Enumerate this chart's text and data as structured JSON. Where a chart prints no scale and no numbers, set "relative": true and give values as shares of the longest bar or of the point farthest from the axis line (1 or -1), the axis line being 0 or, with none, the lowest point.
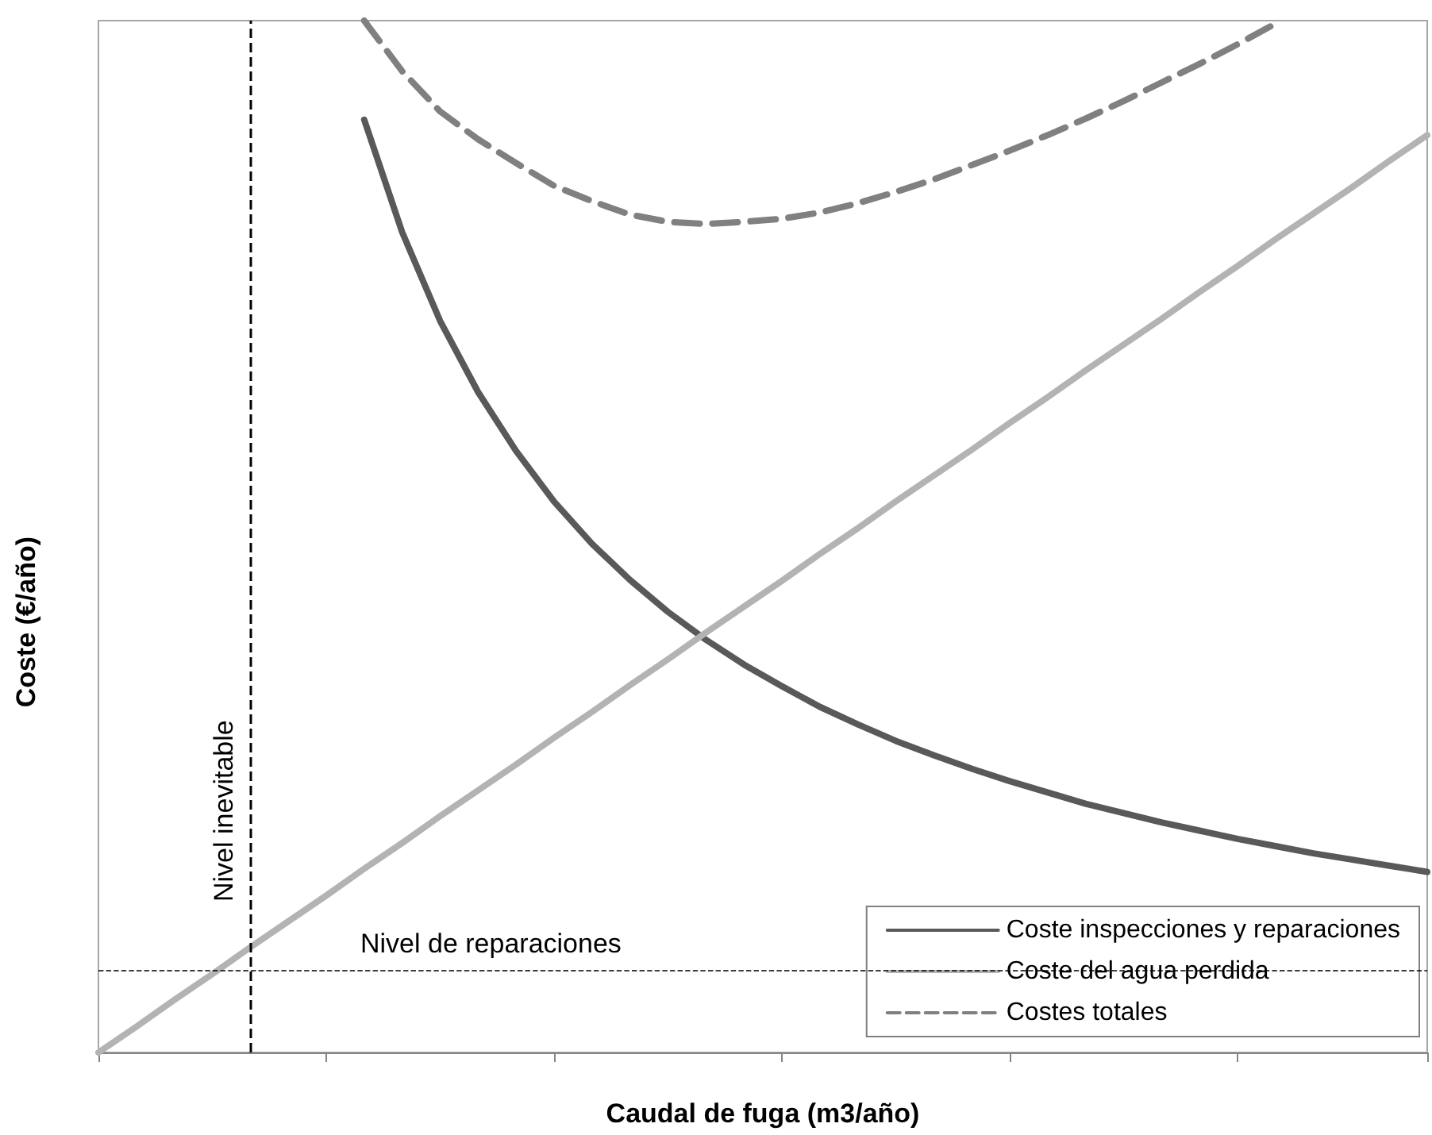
{
  "chart_data": {
    "type": "line",
    "relative": true,
    "xlabel": "Caudal de fuga (m3/año)",
    "ylabel": "Coste (€/año)",
    "categories": [
      null,
      null,
      null,
      null,
      null,
      null,
      null,
      null,
      null,
      null,
      null,
      null,
      null,
      null,
      null,
      null,
      null,
      null,
      null,
      null,
      null,
      null,
      null,
      null,
      null,
      null,
      null,
      null,
      null,
      null,
      null,
      null,
      null,
      null,
      null,
      null
    ],
    "series": [
      {
        "name": "Coste inspecciones y reparaciones",
        "color": "#595959",
        "line_style": "solid",
        "values": [
          null,
          null,
          null,
          null,
          null,
          null,
          null,
          0.904,
          0.795,
          0.709,
          0.64,
          0.583,
          0.534,
          0.493,
          0.458,
          0.427,
          0.4,
          0.376,
          0.355,
          0.335,
          0.318,
          0.302,
          0.288,
          0.275,
          0.263,
          0.252,
          0.241,
          0.232,
          0.223,
          0.215,
          0.207,
          0.2,
          0.193,
          0.187,
          0.181,
          0.175
        ]
      },
      {
        "name": "Coste del agua perdida",
        "color": "#b3b3b3",
        "line_style": "solid",
        "values": [
          0,
          0.025,
          0.051,
          0.076,
          0.102,
          0.127,
          0.152,
          0.178,
          0.203,
          0.229,
          0.254,
          0.279,
          0.305,
          0.33,
          0.356,
          0.381,
          0.407,
          0.432,
          0.457,
          0.483,
          0.508,
          0.534,
          0.559,
          0.584,
          0.61,
          0.635,
          0.661,
          0.686,
          0.711,
          0.737,
          0.762,
          0.788,
          0.813,
          0.838,
          0.864,
          0.889
        ]
      },
      {
        "name": "Costes totales",
        "color": "#808080",
        "line_style": "dashed",
        "values": [
          null,
          null,
          null,
          null,
          null,
          null,
          null,
          1.0,
          0.951,
          0.912,
          0.885,
          0.862,
          0.84,
          0.825,
          0.812,
          0.805,
          0.803,
          0.805,
          0.808,
          0.814,
          0.823,
          0.834,
          0.846,
          0.86,
          0.874,
          0.889,
          0.905,
          0.922,
          0.94,
          0.958,
          0.977,
          0.997,
          null,
          null,
          null,
          null
        ]
      }
    ],
    "annotations": [
      "Nivel inevitable"
    ],
    "ref_lines": [
      {
        "axis": "y",
        "value": 0.078,
        "label": "Nivel de reparaciones",
        "color": "#000000",
        "line_style": "dashed"
      }
    ],
    "legend": "bottom right",
    "grid": false,
    "marker": "none"
  }
}
